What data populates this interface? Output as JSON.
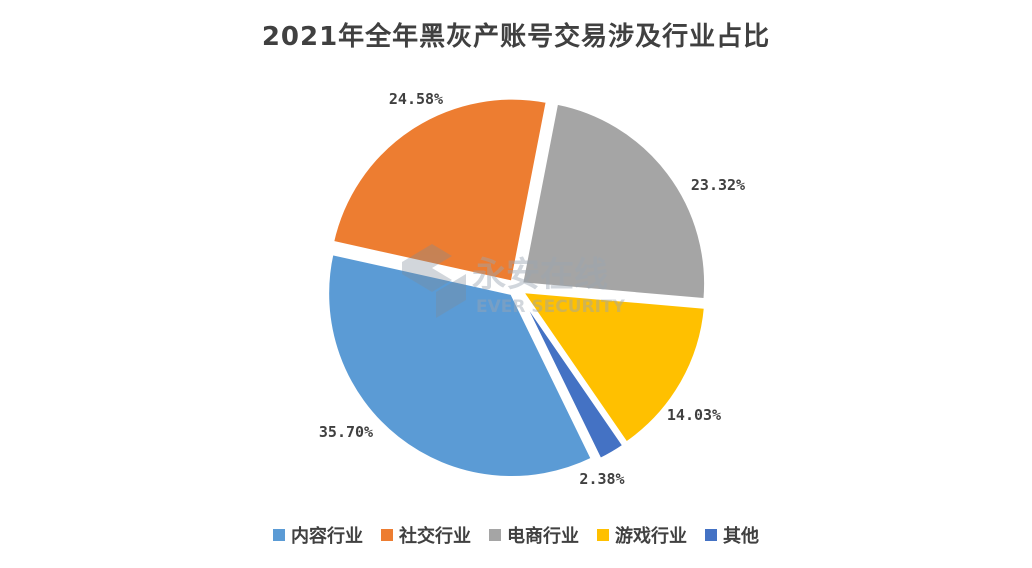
{
  "chart_data": {
    "type": "pie",
    "title": "2021年全年黑灰产账号交易涉及行业占比",
    "categories": [
      "内容行业",
      "社交行业",
      "电商行业",
      "游戏行业",
      "其他"
    ],
    "values": [
      35.7,
      24.58,
      23.32,
      14.03,
      2.38
    ],
    "value_labels": [
      "35.70%",
      "24.58%",
      "23.32%",
      "14.03%",
      "2.38%"
    ],
    "colors": [
      "#5b9bd5",
      "#ed7d31",
      "#a5a5a5",
      "#ffc000",
      "#4472c4"
    ],
    "legend_position": "bottom",
    "exploded": true
  },
  "watermark": {
    "text_cn": "永安在线",
    "text_en": "EVER SECURITY"
  }
}
